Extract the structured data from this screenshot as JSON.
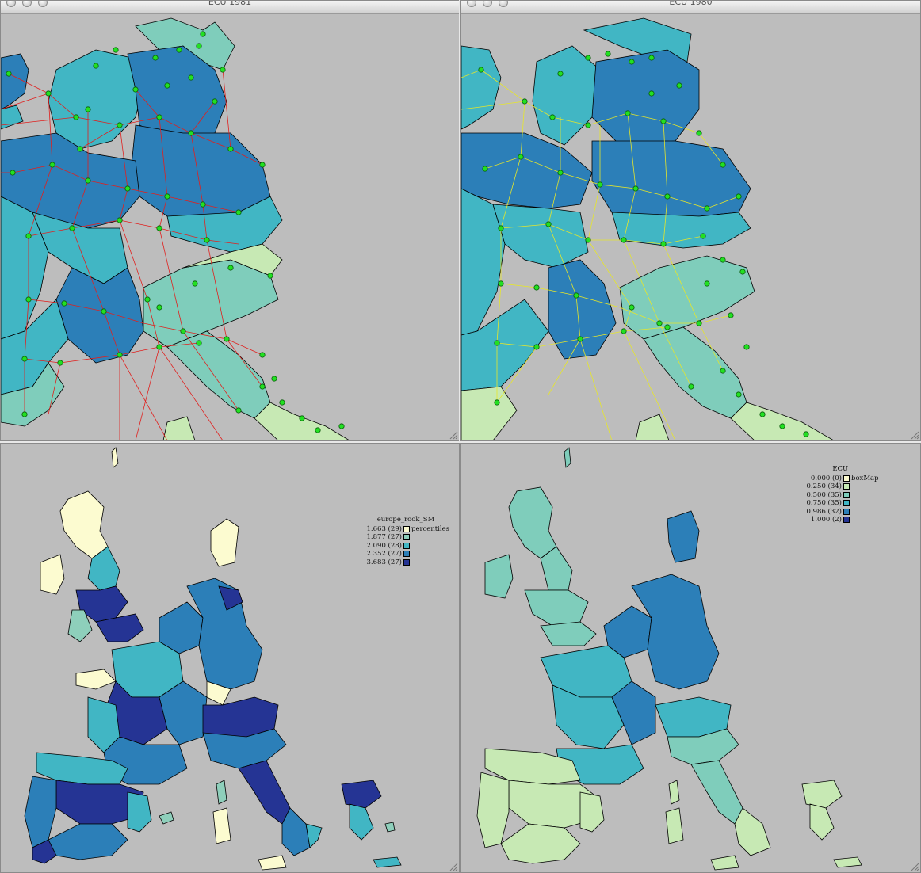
{
  "windows": {
    "top_left": {
      "title": "ECU 1981"
    },
    "top_right": {
      "title": "ECU 1980"
    }
  },
  "legend_left": {
    "title": "europe_rook_SM",
    "method": "percentiles",
    "rows": [
      {
        "label": "1.663 (29)",
        "color": "#fcfbd0"
      },
      {
        "label": "1.877 (27)",
        "color": "#8ecfbb"
      },
      {
        "label": "2.090 (28)",
        "color": "#41b6c4"
      },
      {
        "label": "2.352 (27)",
        "color": "#2c7fb8"
      },
      {
        "label": "3.683 (27)",
        "color": "#253494"
      }
    ]
  },
  "legend_right": {
    "title": "ECU",
    "method": "boxMap",
    "rows": [
      {
        "label": "0.000 (0)",
        "color": "#fcfbd0"
      },
      {
        "label": "0.250 (34)",
        "color": "#c7e9b4"
      },
      {
        "label": "0.500 (35)",
        "color": "#7fcdbb"
      },
      {
        "label": "0.750 (35)",
        "color": "#41b6c4"
      },
      {
        "label": "0.986 (32)",
        "color": "#2c7fb8"
      },
      {
        "label": "1.000 (2)",
        "color": "#253494"
      }
    ]
  },
  "colors": {
    "background": "#bdbdbd",
    "links_1981": "#e0201e",
    "links_1980": "#e6e62a",
    "nodes": "#22e022"
  }
}
